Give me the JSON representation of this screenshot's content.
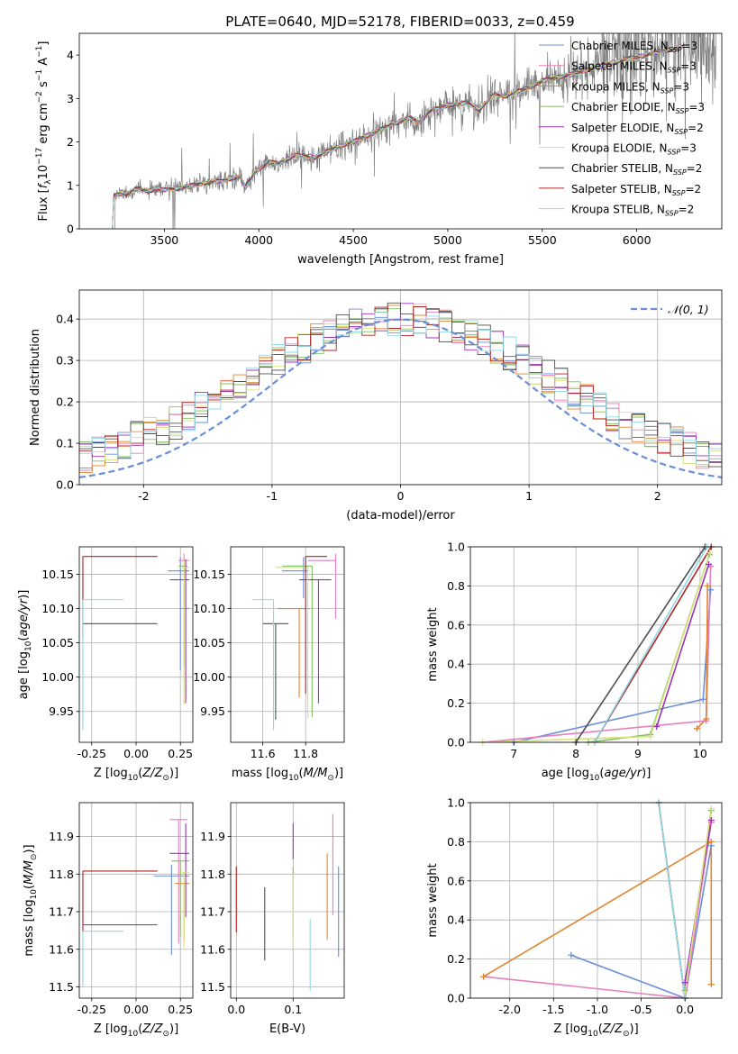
{
  "figure": {
    "title": "PLATE=0640, MJD=52178, FIBERID=0033, z=0.459"
  },
  "colors": {
    "Chabrier MILES": "#6a8fd8",
    "Salpeter MILES": "#e67fbf",
    "Kroupa MILES": "#e3852d",
    "Chabrier ELODIE": "#7fbf5f",
    "Salpeter ELODIE": "#9933bb",
    "Kroupa ELODIE": "#d8e27a",
    "Chabrier STELIB": "#505050",
    "Salpeter STELIB": "#b22222",
    "Kroupa STELIB": "#8fd8e6",
    "data": "#808080",
    "normal": "#6a8fd8"
  },
  "chart_data": [
    {
      "id": "spectrum",
      "type": "line",
      "xlabel": "wavelength [Angstrom, rest frame]",
      "ylabel": "Flux [f_λ 10^-17 erg cm^-2 s^-1 A^-1]",
      "xlim": [
        3050,
        6450
      ],
      "ylim": [
        0,
        4.5
      ],
      "xticks": [
        3500,
        4000,
        4500,
        5000,
        5500,
        6000
      ],
      "yticks": [
        0,
        1,
        2,
        3,
        4
      ],
      "legend": {
        "placement": "upper-right",
        "entries": [
          {
            "name": "Chabrier MILES",
            "nssp": "3"
          },
          {
            "name": "Salpeter MILES",
            "nssp": "3"
          },
          {
            "name": "Kroupa MILES",
            "nssp": "3"
          },
          {
            "name": "Chabrier ELODIE",
            "nssp": "3"
          },
          {
            "name": "Salpeter ELODIE",
            "nssp": "2"
          },
          {
            "name": "Kroupa ELODIE",
            "nssp": "3"
          },
          {
            "name": "Chabrier STELIB",
            "nssp": "2"
          },
          {
            "name": "Salpeter STELIB",
            "nssp": "2"
          },
          {
            "name": "Kroupa STELIB",
            "nssp": "2"
          }
        ]
      },
      "model_continuum": [
        [
          3220,
          0
        ],
        [
          3230,
          0.75
        ],
        [
          3280,
          0.85
        ],
        [
          3300,
          0.8
        ],
        [
          3350,
          0.92
        ],
        [
          3400,
          0.88
        ],
        [
          3500,
          0.9
        ],
        [
          3600,
          0.95
        ],
        [
          3700,
          1.05
        ],
        [
          3800,
          1.1
        ],
        [
          3900,
          1.2
        ],
        [
          3930,
          0.95
        ],
        [
          3980,
          1.3
        ],
        [
          4050,
          1.55
        ],
        [
          4100,
          1.5
        ],
        [
          4200,
          1.7
        ],
        [
          4300,
          1.65
        ],
        [
          4400,
          1.85
        ],
        [
          4500,
          2.0
        ],
        [
          4600,
          2.2
        ],
        [
          4700,
          2.4
        ],
        [
          4800,
          2.55
        ],
        [
          4850,
          2.45
        ],
        [
          4900,
          2.7
        ],
        [
          5000,
          2.85
        ],
        [
          5100,
          2.9
        ],
        [
          5170,
          2.75
        ],
        [
          5250,
          3.1
        ],
        [
          5300,
          3.05
        ],
        [
          5400,
          3.2
        ],
        [
          5500,
          3.4
        ],
        [
          5600,
          3.5
        ],
        [
          5700,
          3.6
        ],
        [
          5800,
          3.75
        ],
        [
          5900,
          3.85
        ],
        [
          6000,
          3.95
        ],
        [
          6100,
          4.05
        ],
        [
          6200,
          4.15
        ],
        [
          6250,
          4.2
        ]
      ]
    },
    {
      "id": "residual-hist",
      "type": "step",
      "xlabel": "(data-model)/error",
      "ylabel": "Normed distribution",
      "xlim": [
        -2.5,
        2.5
      ],
      "ylim": [
        0,
        0.47
      ],
      "xticks": [
        -2,
        -1,
        0,
        1,
        2
      ],
      "yticks": [
        0.0,
        0.1,
        0.2,
        0.3,
        0.4
      ],
      "legend": {
        "placement": "top-right",
        "label": "N(0,1)"
      },
      "bin_edges_start": -2.5,
      "bin_width": 0.1
    },
    {
      "id": "age-vs-Z",
      "type": "errorbar",
      "xlabel": "Z [log10(Z/Z_sun)]",
      "ylabel": "age  [log10(age/yr)]",
      "xlim": [
        -0.32,
        0.32
      ],
      "ylim": [
        9.905,
        10.19
      ],
      "xticks": [
        -0.25,
        0.0,
        0.25
      ],
      "yticks": [
        9.95,
        10.0,
        10.05,
        10.1,
        10.15
      ],
      "points": [
        {
          "model": "Chabrier MILES",
          "x": 0.25,
          "xerr": [
            0.07,
            0.05
          ],
          "y": 10.155,
          "yerr": [
            0.145,
            0.02
          ]
        },
        {
          "model": "Salpeter MILES",
          "x": 0.27,
          "xerr": [
            0.03,
            0.03
          ],
          "y": 10.17,
          "yerr": [
            0.07,
            0.01
          ]
        },
        {
          "model": "Kroupa MILES",
          "x": 0.27,
          "xerr": [
            0.02,
            0.03
          ],
          "y": 10.1,
          "yerr": [
            0.08,
            0.06
          ]
        },
        {
          "model": "Chabrier ELODIE",
          "x": 0.27,
          "xerr": [
            0.03,
            0.02
          ],
          "y": 10.162,
          "yerr": [
            0.15,
            0.01
          ]
        },
        {
          "model": "Salpeter ELODIE",
          "x": 0.28,
          "xerr": [
            0.09,
            0.02
          ],
          "y": 10.142,
          "yerr": [
            0.18,
            0.03
          ]
        },
        {
          "model": "Kroupa ELODIE",
          "x": 0.27,
          "xerr": [
            0.02,
            0.03
          ],
          "y": 10.16,
          "yerr": [
            0.2,
            0.01
          ]
        },
        {
          "model": "Chabrier STELIB",
          "x": -0.3,
          "xerr": [
            0.0,
            0.42
          ],
          "y": 10.078,
          "yerr": [
            0.0,
            0.0
          ]
        },
        {
          "model": "Salpeter STELIB",
          "x": -0.3,
          "xerr": [
            0.0,
            0.42
          ],
          "y": 10.176,
          "yerr": [
            0.12,
            0.0
          ]
        },
        {
          "model": "Kroupa STELIB",
          "x": -0.3,
          "xerr": [
            0.0,
            0.23
          ],
          "y": 10.113,
          "yerr": [
            0.19,
            0.0
          ]
        }
      ]
    },
    {
      "id": "age-vs-mass",
      "type": "errorbar",
      "xlabel": "mass [log10(M/M_sun)]",
      "ylabel": "",
      "xlim": [
        11.45,
        11.98
      ],
      "ylim": [
        9.905,
        10.19
      ],
      "xticks": [
        11.6,
        11.8
      ],
      "yticks": [
        9.95,
        10.0,
        10.05,
        10.1,
        10.15
      ],
      "points": [
        {
          "model": "Chabrier MILES",
          "x": 11.79,
          "xerr": [
            0.1,
            0.02
          ],
          "y": 10.155,
          "yerr": [
            0.04,
            0.02
          ]
        },
        {
          "model": "Salpeter MILES",
          "x": 11.94,
          "xerr": [
            0.13,
            0.0
          ],
          "y": 10.17,
          "yerr": [
            0.085,
            0.01
          ]
        },
        {
          "model": "Kroupa MILES",
          "x": 11.77,
          "xerr": [
            0.1,
            0.05
          ],
          "y": 10.1,
          "yerr": [
            0.13,
            0.0
          ]
        },
        {
          "model": "Chabrier ELODIE",
          "x": 11.83,
          "xerr": [
            0.14,
            0.0
          ],
          "y": 10.162,
          "yerr": [
            0.22,
            0.0
          ]
        },
        {
          "model": "Salpeter ELODIE",
          "x": 11.86,
          "xerr": [
            0.09,
            0.06
          ],
          "y": 10.142,
          "yerr": [
            0.18,
            0.0
          ]
        },
        {
          "model": "Kroupa ELODIE",
          "x": 11.81,
          "xerr": [
            0.15,
            0.0
          ],
          "y": 10.16,
          "yerr": [
            0.22,
            0.0
          ]
        },
        {
          "model": "Chabrier STELIB",
          "x": 11.66,
          "xerr": [
            0.06,
            0.06
          ],
          "y": 10.078,
          "yerr": [
            0.14,
            0.0
          ]
        },
        {
          "model": "Salpeter STELIB",
          "x": 11.8,
          "xerr": [
            0.0,
            0.1
          ],
          "y": 10.176,
          "yerr": [
            0.2,
            0.0
          ]
        },
        {
          "model": "Kroupa STELIB",
          "x": 11.65,
          "xerr": [
            0.1,
            0.0
          ],
          "y": 10.113,
          "yerr": [
            0.19,
            0.0
          ]
        }
      ]
    },
    {
      "id": "weight-vs-age",
      "type": "line",
      "xlabel": "age  [log10(age/yr)]",
      "ylabel": "mass weight",
      "xlim": [
        6.3,
        10.35
      ],
      "ylim": [
        0,
        1
      ],
      "xticks": [
        7,
        8,
        9,
        10
      ],
      "yticks": [
        0.0,
        0.2,
        0.4,
        0.6,
        0.8,
        1.0
      ],
      "series": [
        {
          "model": "Chabrier MILES",
          "x": [
            7.0,
            10.05,
            10.17
          ],
          "y": [
            0.0,
            0.22,
            0.78
          ]
        },
        {
          "model": "Salpeter MILES",
          "x": [
            6.5,
            10.1,
            10.17
          ],
          "y": [
            0.0,
            0.11,
            0.9
          ]
        },
        {
          "model": "Kroupa MILES",
          "x": [
            9.95,
            10.1,
            10.12
          ],
          "y": [
            0.07,
            0.12,
            0.8
          ]
        },
        {
          "model": "Chabrier ELODIE",
          "x": [
            8.2,
            9.2,
            10.15
          ],
          "y": [
            0.0,
            0.04,
            0.96
          ]
        },
        {
          "model": "Salpeter ELODIE",
          "x": [
            9.3,
            10.14
          ],
          "y": [
            0.08,
            0.91
          ]
        },
        {
          "model": "Kroupa ELODIE",
          "x": [
            6.5,
            9.2,
            10.16
          ],
          "y": [
            0.0,
            0.03,
            0.97
          ]
        },
        {
          "model": "Chabrier STELIB",
          "x": [
            8.0,
            10.08
          ],
          "y": [
            0.0,
            1.0
          ]
        },
        {
          "model": "Salpeter STELIB",
          "x": [
            8.3,
            10.18
          ],
          "y": [
            0.0,
            1.0
          ]
        },
        {
          "model": "Kroupa STELIB",
          "x": [
            8.3,
            10.11
          ],
          "y": [
            0.0,
            1.0
          ]
        }
      ]
    },
    {
      "id": "mass-vs-Z",
      "type": "errorbar",
      "xlabel": "Z [log10(Z/Z_sun)]",
      "ylabel": "mass [log10(M/M_sun)]",
      "xlim": [
        -0.32,
        0.32
      ],
      "ylim": [
        11.47,
        11.99
      ],
      "xticks": [
        -0.25,
        0.0,
        0.25
      ],
      "yticks": [
        11.5,
        11.6,
        11.7,
        11.8,
        11.9
      ],
      "points": [
        {
          "model": "Chabrier MILES",
          "x": 0.2,
          "xerr": [
            0.1,
            0.1
          ],
          "y": 11.795,
          "yerr": [
            0.21,
            0.03
          ]
        },
        {
          "model": "Salpeter MILES",
          "x": 0.24,
          "xerr": [
            0.05,
            0.05
          ],
          "y": 11.945,
          "yerr": [
            0.33,
            0.0
          ]
        },
        {
          "model": "Kroupa MILES",
          "x": 0.27,
          "xerr": [
            0.05,
            0.03
          ],
          "y": 11.775,
          "yerr": [
            0.15,
            0.0
          ]
        },
        {
          "model": "Chabrier ELODIE",
          "x": 0.25,
          "xerr": [
            0.05,
            0.05
          ],
          "y": 11.835,
          "yerr": [
            0.2,
            0.0
          ]
        },
        {
          "model": "Salpeter ELODIE",
          "x": 0.28,
          "xerr": [
            0.09,
            0.02
          ],
          "y": 11.855,
          "yerr": [
            0.17,
            0.08
          ]
        },
        {
          "model": "Kroupa ELODIE",
          "x": 0.27,
          "xerr": [
            0.02,
            0.03
          ],
          "y": 11.805,
          "yerr": [
            0.2,
            0.0
          ]
        },
        {
          "model": "Chabrier STELIB",
          "x": -0.3,
          "xerr": [
            0.0,
            0.42
          ],
          "y": 11.665,
          "yerr": [
            0.0,
            0.0
          ]
        },
        {
          "model": "Salpeter STELIB",
          "x": -0.3,
          "xerr": [
            0.0,
            0.42
          ],
          "y": 11.808,
          "yerr": [
            0.16,
            0.0
          ]
        },
        {
          "model": "Kroupa STELIB",
          "x": -0.3,
          "xerr": [
            0.0,
            0.23
          ],
          "y": 11.648,
          "yerr": [
            0.15,
            0.0
          ]
        }
      ]
    },
    {
      "id": "mass-vs-ebv",
      "type": "errorbar",
      "xlabel": "E(B-V)",
      "ylabel": "",
      "xlim": [
        -0.01,
        0.19
      ],
      "ylim": [
        11.47,
        11.99
      ],
      "xticks": [
        0.0,
        0.1
      ],
      "yticks": [
        11.5,
        11.6,
        11.7,
        11.8,
        11.9
      ],
      "points": [
        {
          "model": "Chabrier MILES",
          "x": 0.18,
          "yerr": [
            11.58,
            11.82
          ]
        },
        {
          "model": "Salpeter MILES",
          "x": 0.17,
          "yerr": [
            11.69,
            11.96
          ]
        },
        {
          "model": "Kroupa MILES",
          "x": 0.16,
          "yerr": [
            11.625,
            11.855
          ]
        },
        {
          "model": "Chabrier ELODIE",
          "x": 0.1,
          "yerr": [
            11.63,
            11.82
          ]
        },
        {
          "model": "Salpeter ELODIE",
          "x": 0.1,
          "yerr": [
            11.84,
            11.935
          ]
        },
        {
          "model": "Kroupa ELODIE",
          "x": 0.1,
          "yerr": [
            11.6,
            11.8
          ]
        },
        {
          "model": "Chabrier STELIB",
          "x": 0.05,
          "yerr": [
            11.57,
            11.765
          ]
        },
        {
          "model": "Salpeter STELIB",
          "x": 0.0,
          "yerr": [
            11.645,
            11.82
          ]
        },
        {
          "model": "Kroupa STELIB",
          "x": 0.13,
          "yerr": [
            11.49,
            11.68
          ]
        }
      ]
    },
    {
      "id": "weight-vs-Z",
      "type": "line",
      "xlabel": "Z [log10(Z/Z_sun)]",
      "ylabel": "mass weight",
      "xlim": [
        -2.45,
        0.42
      ],
      "ylim": [
        0,
        1
      ],
      "xticks": [
        -2.0,
        -1.5,
        -1.0,
        -0.5,
        0.0
      ],
      "yticks": [
        0.0,
        0.2,
        0.4,
        0.6,
        0.8,
        1.0
      ],
      "series": [
        {
          "model": "Chabrier MILES",
          "x": [
            -1.3,
            0.0,
            0.3
          ],
          "y": [
            0.22,
            0.0,
            0.78
          ]
        },
        {
          "model": "Salpeter MILES",
          "x": [
            -2.3,
            0.0,
            0.3
          ],
          "y": [
            0.11,
            0.0,
            0.9
          ]
        },
        {
          "model": "Kroupa MILES",
          "x": [
            -2.3,
            0.3,
            0.3
          ],
          "y": [
            0.11,
            0.8,
            0.07
          ]
        },
        {
          "model": "Chabrier ELODIE",
          "x": [
            0.0,
            0.3
          ],
          "y": [
            0.04,
            0.96
          ]
        },
        {
          "model": "Salpeter ELODIE",
          "x": [
            0.0,
            0.3
          ],
          "y": [
            0.08,
            0.91
          ]
        },
        {
          "model": "Kroupa ELODIE",
          "x": [
            0.0,
            0.3
          ],
          "y": [
            0.03,
            0.97
          ]
        },
        {
          "model": "Chabrier STELIB",
          "x": [
            -0.3,
            0.0
          ],
          "y": [
            1.0,
            0.0
          ]
        },
        {
          "model": "Salpeter STELIB",
          "x": [
            -0.3,
            0.0
          ],
          "y": [
            1.0,
            0.0
          ]
        },
        {
          "model": "Kroupa STELIB",
          "x": [
            -0.3,
            0.0
          ],
          "y": [
            1.0,
            0.0
          ]
        }
      ]
    }
  ]
}
